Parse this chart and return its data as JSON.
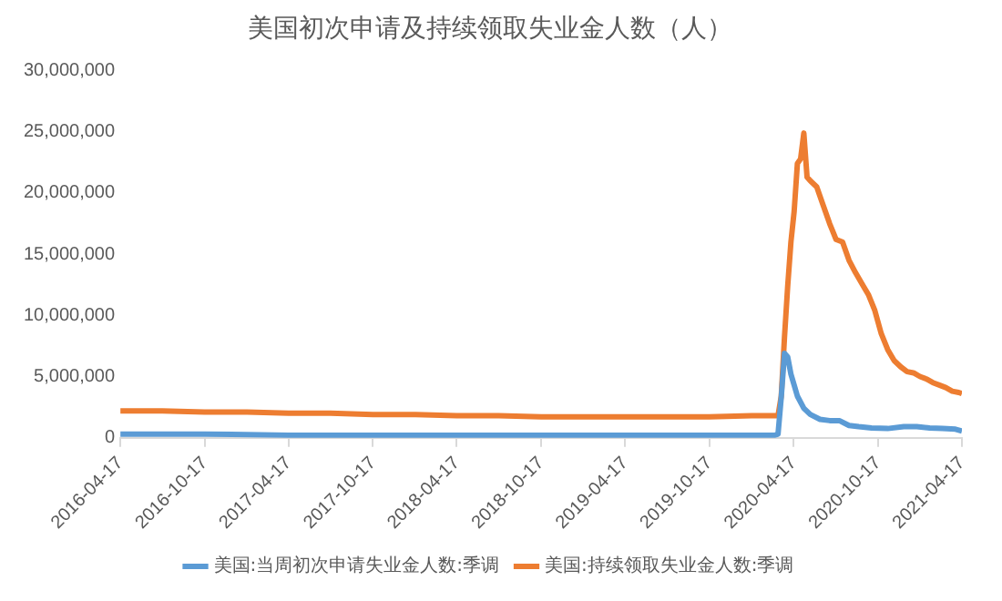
{
  "chart_data": {
    "type": "line",
    "title": "美国初次申请及持续领取失业金人数（人）",
    "xlim": [
      "2016-04-17",
      "2021-04-17"
    ],
    "xticks": [
      "2016-04-17",
      "2016-10-17",
      "2017-04-17",
      "2017-10-17",
      "2018-04-17",
      "2018-10-17",
      "2019-04-17",
      "2019-10-17",
      "2020-04-17",
      "2020-10-17",
      "2021-04-17"
    ],
    "ylim": [
      0,
      30000000
    ],
    "yticks": [
      0,
      {
        "value": 5000000,
        "label": "5,000,000"
      },
      {
        "value": 10000000,
        "label": "10,000,000"
      },
      {
        "value": 15000000,
        "label": "15,000,000"
      },
      {
        "value": 20000000,
        "label": "20,000,000"
      },
      {
        "value": 25000000,
        "label": "25,000,000"
      },
      {
        "value": 30000000,
        "label": "30,000,000"
      }
    ],
    "grid": false,
    "legend": "bottom",
    "marker": "none",
    "line_style": "solid",
    "series": [
      {
        "name": "美国:当周初次申请失业金人数:季调",
        "color": "#5b9bd5",
        "x": [
          "2016-04-17",
          "2016-10-17",
          "2017-04-17",
          "2017-10-17",
          "2018-04-17",
          "2018-10-17",
          "2019-04-17",
          "2019-10-17",
          "2020-03-07",
          "2020-03-14",
          "2020-03-21",
          "2020-03-28",
          "2020-04-04",
          "2020-04-11",
          "2020-04-18",
          "2020-04-25",
          "2020-05-09",
          "2020-05-23",
          "2020-06-13",
          "2020-07-04",
          "2020-07-25",
          "2020-08-15",
          "2020-09-05",
          "2020-10-03",
          "2020-11-07",
          "2020-12-12",
          "2021-01-09",
          "2021-02-06",
          "2021-03-06",
          "2021-04-03",
          "2021-04-17"
        ],
        "values": [
          300000,
          300000,
          200000,
          200000,
          200000,
          200000,
          200000,
          200000,
          200000,
          300000,
          3300000,
          6900000,
          6600000,
          5200000,
          4300000,
          3400000,
          2400000,
          1900000,
          1500000,
          1400000,
          1400000,
          1000000,
          900000,
          800000,
          750000,
          900000,
          900000,
          800000,
          750000,
          700000,
          550000
        ]
      },
      {
        "name": "美国:持续领取失业金人数:季调",
        "color": "#ed7d31",
        "x": [
          "2016-04-17",
          "2016-07-17",
          "2016-10-17",
          "2017-01-17",
          "2017-04-17",
          "2017-07-17",
          "2017-10-17",
          "2018-01-17",
          "2018-04-17",
          "2018-07-17",
          "2018-10-17",
          "2019-01-17",
          "2019-04-17",
          "2019-07-17",
          "2019-10-17",
          "2020-01-17",
          "2020-03-14",
          "2020-03-21",
          "2020-03-28",
          "2020-04-04",
          "2020-04-11",
          "2020-04-18",
          "2020-04-25",
          "2020-05-02",
          "2020-05-09",
          "2020-05-16",
          "2020-05-23",
          "2020-06-06",
          "2020-06-20",
          "2020-07-04",
          "2020-07-18",
          "2020-08-01",
          "2020-08-15",
          "2020-08-29",
          "2020-09-12",
          "2020-09-26",
          "2020-10-10",
          "2020-10-24",
          "2020-11-07",
          "2020-11-21",
          "2020-12-05",
          "2020-12-19",
          "2021-01-02",
          "2021-01-16",
          "2021-01-30",
          "2021-02-13",
          "2021-02-27",
          "2021-03-13",
          "2021-03-27",
          "2021-04-10",
          "2021-04-17"
        ],
        "values": [
          2200000,
          2200000,
          2100000,
          2100000,
          2000000,
          2000000,
          1900000,
          1900000,
          1800000,
          1800000,
          1700000,
          1700000,
          1700000,
          1700000,
          1700000,
          1800000,
          1800000,
          3400000,
          8200000,
          12400000,
          16000000,
          18500000,
          22400000,
          22800000,
          24900000,
          21300000,
          21000000,
          20500000,
          19000000,
          17500000,
          16200000,
          16000000,
          14500000,
          13500000,
          12600000,
          11700000,
          10400000,
          8500000,
          7200000,
          6300000,
          5800000,
          5400000,
          5300000,
          5000000,
          4800000,
          4500000,
          4300000,
          4100000,
          3800000,
          3700000,
          3600000
        ]
      }
    ]
  }
}
